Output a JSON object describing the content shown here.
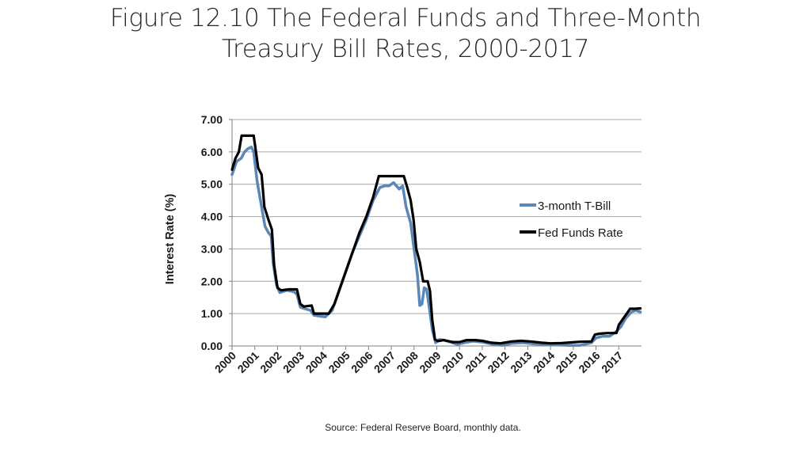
{
  "slide": {
    "title_line1": "Figure 12.10 The Federal Funds and Three-Month",
    "title_line2": "Treasury Bill Rates, 2000-2017",
    "source": "Source: Federal Reserve Board, monthly data."
  },
  "chart_data": {
    "type": "line",
    "title": "Figure 12.10 The Federal Funds and Three-Month Treasury Bill Rates, 2000-2017",
    "xlabel": "",
    "ylabel": "Interest Rate (%)",
    "xlim": [
      2000,
      2018
    ],
    "ylim": [
      0,
      7
    ],
    "yticks": [
      "0.00",
      "1.00",
      "2.00",
      "3.00",
      "4.00",
      "5.00",
      "6.00",
      "7.00"
    ],
    "xticks": [
      "2000",
      "2001",
      "2002",
      "2003",
      "2004",
      "2005",
      "2006",
      "2007",
      "2008",
      "2009",
      "2010",
      "2011",
      "2012",
      "2013",
      "2014",
      "2015",
      "2016",
      "2017"
    ],
    "grid": true,
    "legend_position": "right",
    "series": [
      {
        "name": "3-month T-Bill",
        "color": "#5b86b8",
        "points": [
          [
            2000.0,
            5.3
          ],
          [
            2000.2,
            5.7
          ],
          [
            2000.4,
            5.8
          ],
          [
            2000.55,
            6.0
          ],
          [
            2000.7,
            6.1
          ],
          [
            2000.85,
            6.15
          ],
          [
            2000.95,
            6.0
          ],
          [
            2001.1,
            5.1
          ],
          [
            2001.3,
            4.3
          ],
          [
            2001.45,
            3.7
          ],
          [
            2001.6,
            3.5
          ],
          [
            2001.72,
            3.4
          ],
          [
            2001.8,
            2.6
          ],
          [
            2001.95,
            1.9
          ],
          [
            2002.1,
            1.65
          ],
          [
            2002.4,
            1.72
          ],
          [
            2002.7,
            1.68
          ],
          [
            2002.85,
            1.6
          ],
          [
            2003.0,
            1.2
          ],
          [
            2003.2,
            1.15
          ],
          [
            2003.45,
            1.1
          ],
          [
            2003.6,
            0.95
          ],
          [
            2003.85,
            0.92
          ],
          [
            2004.1,
            0.9
          ],
          [
            2004.4,
            1.1
          ],
          [
            2004.7,
            1.7
          ],
          [
            2005.0,
            2.3
          ],
          [
            2005.3,
            2.9
          ],
          [
            2005.6,
            3.4
          ],
          [
            2005.9,
            3.9
          ],
          [
            2006.2,
            4.5
          ],
          [
            2006.5,
            4.9
          ],
          [
            2006.7,
            4.95
          ],
          [
            2006.9,
            4.95
          ],
          [
            2007.1,
            5.05
          ],
          [
            2007.35,
            4.85
          ],
          [
            2007.5,
            4.95
          ],
          [
            2007.65,
            4.3
          ],
          [
            2007.85,
            3.8
          ],
          [
            2008.0,
            3.0
          ],
          [
            2008.15,
            2.2
          ],
          [
            2008.25,
            1.25
          ],
          [
            2008.35,
            1.3
          ],
          [
            2008.45,
            1.8
          ],
          [
            2008.55,
            1.75
          ],
          [
            2008.65,
            1.3
          ],
          [
            2008.8,
            0.5
          ],
          [
            2008.95,
            0.1
          ],
          [
            2009.1,
            0.2
          ],
          [
            2009.3,
            0.18
          ],
          [
            2009.6,
            0.12
          ],
          [
            2009.9,
            0.05
          ],
          [
            2010.2,
            0.1
          ],
          [
            2010.6,
            0.15
          ],
          [
            2011.0,
            0.12
          ],
          [
            2011.5,
            0.05
          ],
          [
            2011.9,
            0.02
          ],
          [
            2012.3,
            0.08
          ],
          [
            2012.8,
            0.1
          ],
          [
            2013.3,
            0.06
          ],
          [
            2013.8,
            0.05
          ],
          [
            2014.3,
            0.03
          ],
          [
            2014.8,
            0.02
          ],
          [
            2015.3,
            0.02
          ],
          [
            2015.8,
            0.1
          ],
          [
            2016.0,
            0.25
          ],
          [
            2016.3,
            0.3
          ],
          [
            2016.6,
            0.3
          ],
          [
            2016.9,
            0.45
          ],
          [
            2017.1,
            0.6
          ],
          [
            2017.3,
            0.85
          ],
          [
            2017.55,
            1.05
          ],
          [
            2017.75,
            1.1
          ],
          [
            2017.95,
            1.05
          ]
        ]
      },
      {
        "name": "Fed Funds Rate",
        "color": "#000000",
        "points": [
          [
            2000.0,
            5.45
          ],
          [
            2000.15,
            5.8
          ],
          [
            2000.3,
            6.0
          ],
          [
            2000.42,
            6.5
          ],
          [
            2000.6,
            6.5
          ],
          [
            2000.75,
            6.5
          ],
          [
            2000.95,
            6.5
          ],
          [
            2001.05,
            6.0
          ],
          [
            2001.15,
            5.5
          ],
          [
            2001.3,
            5.3
          ],
          [
            2001.42,
            4.3
          ],
          [
            2001.6,
            3.9
          ],
          [
            2001.75,
            3.6
          ],
          [
            2001.85,
            2.5
          ],
          [
            2002.0,
            1.8
          ],
          [
            2002.15,
            1.72
          ],
          [
            2002.5,
            1.75
          ],
          [
            2002.85,
            1.75
          ],
          [
            2003.0,
            1.3
          ],
          [
            2003.15,
            1.22
          ],
          [
            2003.5,
            1.25
          ],
          [
            2003.6,
            1.0
          ],
          [
            2003.85,
            1.0
          ],
          [
            2004.25,
            1.0
          ],
          [
            2004.5,
            1.3
          ],
          [
            2004.75,
            1.8
          ],
          [
            2005.0,
            2.3
          ],
          [
            2005.3,
            2.9
          ],
          [
            2005.6,
            3.5
          ],
          [
            2005.9,
            4.0
          ],
          [
            2006.2,
            4.6
          ],
          [
            2006.45,
            5.25
          ],
          [
            2006.6,
            5.25
          ],
          [
            2007.3,
            5.25
          ],
          [
            2007.55,
            5.25
          ],
          [
            2007.7,
            4.9
          ],
          [
            2007.85,
            4.5
          ],
          [
            2007.98,
            3.9
          ],
          [
            2008.1,
            3.0
          ],
          [
            2008.25,
            2.6
          ],
          [
            2008.4,
            2.0
          ],
          [
            2008.6,
            2.0
          ],
          [
            2008.7,
            1.7
          ],
          [
            2008.8,
            0.8
          ],
          [
            2008.92,
            0.2
          ],
          [
            2009.05,
            0.15
          ],
          [
            2009.3,
            0.18
          ],
          [
            2009.7,
            0.12
          ],
          [
            2010.0,
            0.12
          ],
          [
            2010.3,
            0.18
          ],
          [
            2010.7,
            0.18
          ],
          [
            2011.0,
            0.16
          ],
          [
            2011.4,
            0.1
          ],
          [
            2011.8,
            0.08
          ],
          [
            2012.3,
            0.14
          ],
          [
            2012.7,
            0.16
          ],
          [
            2013.1,
            0.14
          ],
          [
            2013.6,
            0.1
          ],
          [
            2014.0,
            0.08
          ],
          [
            2014.5,
            0.09
          ],
          [
            2014.9,
            0.11
          ],
          [
            2015.3,
            0.13
          ],
          [
            2015.8,
            0.14
          ],
          [
            2015.95,
            0.35
          ],
          [
            2016.15,
            0.38
          ],
          [
            2016.5,
            0.4
          ],
          [
            2016.9,
            0.4
          ],
          [
            2017.0,
            0.65
          ],
          [
            2017.25,
            0.9
          ],
          [
            2017.5,
            1.15
          ],
          [
            2017.7,
            1.15
          ],
          [
            2017.95,
            1.16
          ]
        ]
      }
    ]
  }
}
